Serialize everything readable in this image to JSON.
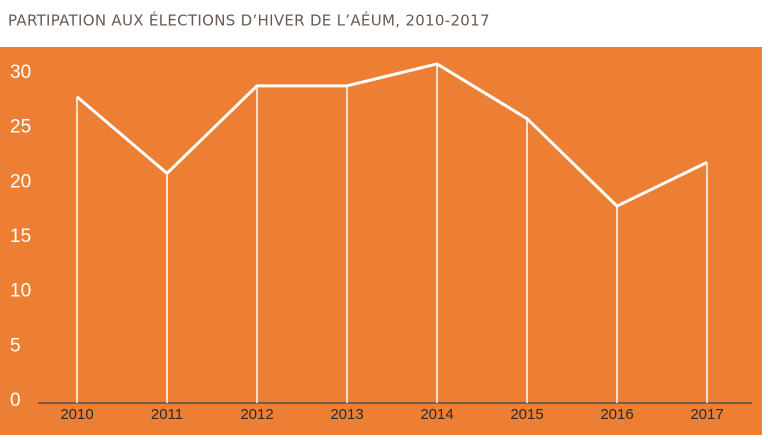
{
  "chart_data": {
    "type": "line",
    "title": "PARTIPATION AUX ÉLECTIONS D’HIVER DE L’AÉUM, 2010-2017",
    "categories": [
      "2010",
      "2011",
      "2012",
      "2013",
      "2014",
      "2015",
      "2016",
      "2017"
    ],
    "values": [
      28,
      21,
      29,
      29,
      31,
      26,
      18,
      22
    ],
    "color": "#ffffff",
    "background": "#ec7f34",
    "ylim": [
      0,
      32
    ],
    "yticks": [
      0,
      5,
      10,
      15,
      20,
      25,
      30
    ],
    "drop_lines": true
  }
}
